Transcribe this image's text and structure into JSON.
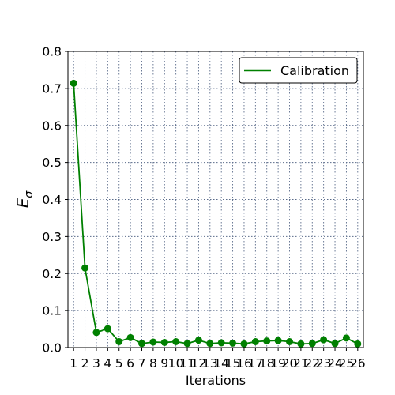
{
  "chart_data": {
    "type": "line",
    "xlabel": "Iterations",
    "ylabel_main": "E",
    "ylabel_sub": "σ",
    "ylim": [
      0.0,
      0.8
    ],
    "yticks": [
      0.0,
      0.1,
      0.2,
      0.3,
      0.4,
      0.5,
      0.6,
      0.7,
      0.8
    ],
    "yticklabels": [
      "0.0",
      "0.1",
      "0.2",
      "0.3",
      "0.4",
      "0.5",
      "0.6",
      "0.7",
      "0.8"
    ],
    "xlim": [
      0.5,
      26.5
    ],
    "x": [
      1,
      2,
      3,
      4,
      5,
      6,
      7,
      8,
      9,
      10,
      11,
      12,
      13,
      14,
      15,
      16,
      17,
      18,
      19,
      20,
      21,
      22,
      23,
      24,
      25,
      26
    ],
    "xticklabels": [
      "1",
      "2",
      "3",
      "4",
      "5",
      "6",
      "7",
      "8",
      "9",
      "10",
      "11",
      "12",
      "13",
      "14",
      "15",
      "16",
      "17",
      "18",
      "19",
      "20",
      "21",
      "22",
      "23",
      "24",
      "25",
      "26"
    ],
    "grid": true,
    "legend_position": "top-right",
    "series": [
      {
        "name": "Calibration",
        "color": "#008000",
        "values": [
          0.714,
          0.215,
          0.041,
          0.051,
          0.016,
          0.027,
          0.011,
          0.015,
          0.014,
          0.016,
          0.011,
          0.02,
          0.011,
          0.013,
          0.012,
          0.01,
          0.016,
          0.018,
          0.019,
          0.016,
          0.01,
          0.011,
          0.021,
          0.011,
          0.026,
          0.01
        ]
      }
    ]
  }
}
